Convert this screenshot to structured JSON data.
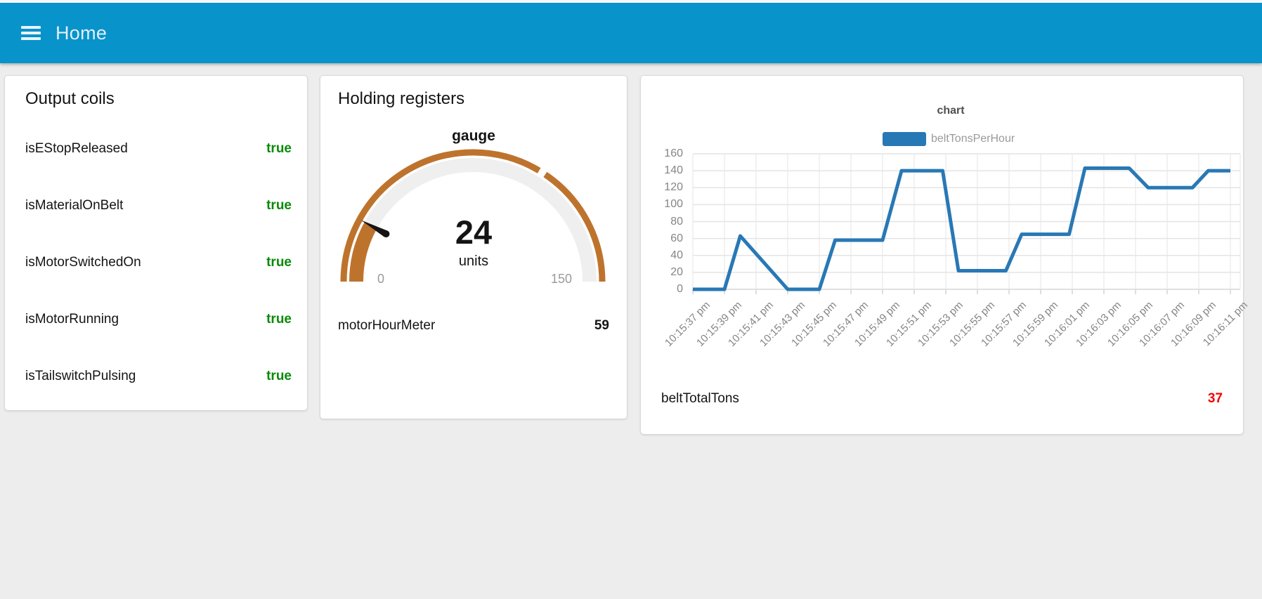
{
  "header": {
    "title": "Home",
    "bar_color": "#0893cb"
  },
  "cards": {
    "output_coils": {
      "title": "Output coils",
      "value_color": "#0a8a0a",
      "rows": [
        {
          "label": "isEStopReleased",
          "value": "true"
        },
        {
          "label": "isMaterialOnBelt",
          "value": "true"
        },
        {
          "label": "isMotorSwitchedOn",
          "value": "true"
        },
        {
          "label": "isMotorRunning",
          "value": "true"
        },
        {
          "label": "isTailswitchPulsing",
          "value": "true"
        }
      ]
    },
    "holding_registers": {
      "title": "Holding registers",
      "gauge": {
        "title": "gauge",
        "value": 24,
        "units": "units",
        "min": 0,
        "max": 150,
        "segment_gap_value": 102,
        "arc_color": "#be732d",
        "track_color": "#efefef",
        "needle_color": "#141414"
      },
      "rows": [
        {
          "label": "motorHourMeter",
          "value": 59
        }
      ]
    },
    "chart_card": {
      "footer_row": {
        "label": "beltTotalTons",
        "value": 37,
        "value_color": "#f40000"
      }
    }
  },
  "chart_data": {
    "type": "line",
    "title": "chart",
    "legend_position": "top",
    "grid": true,
    "ylim": [
      0,
      160
    ],
    "y_ticks": [
      0,
      20,
      40,
      60,
      80,
      100,
      120,
      140,
      160
    ],
    "x_tick_labels": [
      "10:15:37 pm",
      "10:15:39 pm",
      "10:15:41 pm",
      "10:15:43 pm",
      "10:15:45 pm",
      "10:15:47 pm",
      "10:15:49 pm",
      "10:15:51 pm",
      "10:15:53 pm",
      "10:15:55 pm",
      "10:15:57 pm",
      "10:15:59 pm",
      "10:16:01 pm",
      "10:16:03 pm",
      "10:16:05 pm",
      "10:16:07 pm",
      "10:16:09 pm",
      "10:16:11 pm"
    ],
    "series": [
      {
        "name": "beltTonsPerHour",
        "color": "#2878b5",
        "points": [
          [
            0,
            0
          ],
          [
            1,
            0
          ],
          [
            1.5,
            63
          ],
          [
            3,
            0
          ],
          [
            4,
            0
          ],
          [
            4.5,
            58
          ],
          [
            6,
            58
          ],
          [
            6.6,
            140
          ],
          [
            7.9,
            140
          ],
          [
            8.4,
            22
          ],
          [
            9.9,
            22
          ],
          [
            10.4,
            65
          ],
          [
            11.9,
            65
          ],
          [
            12.4,
            143
          ],
          [
            13.8,
            143
          ],
          [
            14.4,
            120
          ],
          [
            15.8,
            120
          ],
          [
            16.3,
            140
          ],
          [
            17,
            140
          ]
        ]
      }
    ]
  }
}
